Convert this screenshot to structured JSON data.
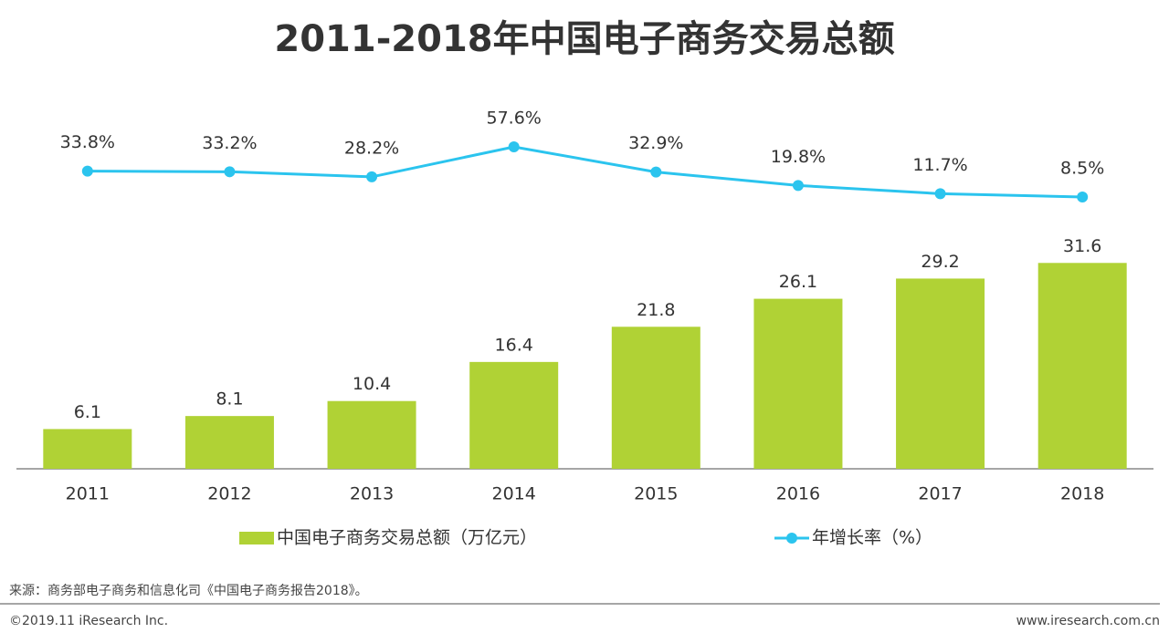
{
  "chart_data": {
    "type": "bar",
    "title": "2011-2018年中国电子商务交易总额",
    "categories": [
      "2011",
      "2012",
      "2013",
      "2014",
      "2015",
      "2016",
      "2017",
      "2018"
    ],
    "series": [
      {
        "name": "中国电子商务交易总额（万亿元）",
        "type": "bar",
        "color": "#b0d235",
        "values": [
          6.1,
          8.1,
          10.4,
          16.4,
          21.8,
          26.1,
          29.2,
          31.6
        ]
      },
      {
        "name": "年增长率（%）",
        "type": "line",
        "axis": "y2",
        "color": "#2bc4ee",
        "values": [
          33.8,
          33.2,
          28.2,
          57.6,
          32.9,
          19.8,
          11.7,
          8.5
        ],
        "value_labels": [
          "33.8%",
          "33.2%",
          "28.2%",
          "57.6%",
          "32.9%",
          "19.8%",
          "11.7%",
          "8.5%"
        ]
      }
    ],
    "ylim": [
      0,
      35
    ],
    "y2lim": [
      0,
      60
    ]
  },
  "footer": {
    "source": "来源：商务部电子商务和信息化司《中国电子商务报告2018》。",
    "copyright": "©2019.11 iResearch Inc.",
    "website": "www.iresearch.com.cn"
  }
}
